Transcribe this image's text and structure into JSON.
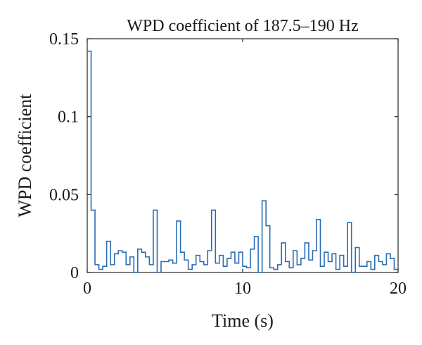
{
  "chart_data": {
    "type": "line",
    "title": "WPD coefficient of 187.5–190 Hz",
    "xlabel": "Time (s)",
    "ylabel": "WPD coefficient",
    "xlim": [
      0,
      20
    ],
    "ylim": [
      0,
      0.15
    ],
    "xticks": [
      0,
      10,
      20
    ],
    "xtick_labels": [
      "0",
      "10",
      "20"
    ],
    "yticks": [
      0,
      0.05,
      0.1,
      0.15
    ],
    "ytick_labels": [
      "0",
      "0.05",
      "0.1",
      "0.15"
    ],
    "grid": false,
    "legend": "none",
    "line_style": "step",
    "series_color": "#2a6db5",
    "series": [
      {
        "x": [
          0.0,
          0.25,
          0.5,
          0.75,
          1.0,
          1.25,
          1.5,
          1.75,
          2.0,
          2.25,
          2.5,
          2.75,
          3.0,
          3.25,
          3.5,
          3.75,
          4.0,
          4.25,
          4.5,
          4.75,
          5.0,
          5.25,
          5.5,
          5.75,
          6.0,
          6.25,
          6.5,
          6.75,
          7.0,
          7.25,
          7.5,
          7.75,
          8.0,
          8.25,
          8.5,
          8.75,
          9.0,
          9.25,
          9.5,
          9.75,
          10.0,
          10.25,
          10.5,
          10.75,
          11.0,
          11.25,
          11.5,
          11.75,
          12.0,
          12.25,
          12.5,
          12.75,
          13.0,
          13.25,
          13.5,
          13.75,
          14.0,
          14.25,
          14.5,
          14.75,
          15.0,
          15.25,
          15.5,
          15.75,
          16.0,
          16.25,
          16.5,
          16.75,
          17.0,
          17.25,
          17.5,
          17.75,
          18.0,
          18.25,
          18.5,
          18.75,
          19.0,
          19.25,
          19.5,
          19.75
        ],
        "y": [
          0.142,
          0.04,
          0.005,
          0.002,
          0.004,
          0.02,
          0.005,
          0.012,
          0.014,
          0.013,
          0.005,
          0.01,
          0.0,
          0.015,
          0.013,
          0.01,
          0.005,
          0.04,
          0.0,
          0.007,
          0.007,
          0.008,
          0.006,
          0.033,
          0.013,
          0.008,
          0.002,
          0.005,
          0.011,
          0.007,
          0.005,
          0.014,
          0.04,
          0.006,
          0.011,
          0.004,
          0.009,
          0.013,
          0.006,
          0.013,
          0.004,
          0.003,
          0.015,
          0.023,
          0.0,
          0.046,
          0.03,
          0.003,
          0.002,
          0.005,
          0.019,
          0.007,
          0.003,
          0.014,
          0.005,
          0.009,
          0.019,
          0.008,
          0.014,
          0.034,
          0.004,
          0.013,
          0.007,
          0.012,
          0.002,
          0.011,
          0.004,
          0.032,
          0.0,
          0.016,
          0.004,
          0.004,
          0.007,
          0.002,
          0.011,
          0.007,
          0.005,
          0.012,
          0.009,
          0.002
        ],
        "x_end": 20
      }
    ]
  }
}
